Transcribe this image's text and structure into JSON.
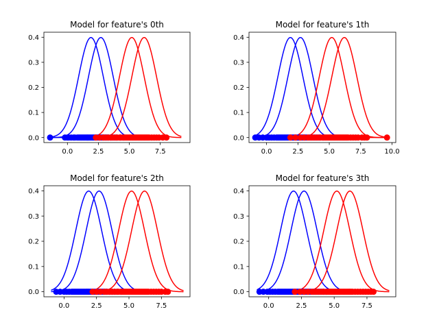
{
  "chart_data": [
    {
      "type": "line",
      "title": "Model for feature's 0th",
      "xlim": [
        -1.9,
        9.9
      ],
      "ylim": [
        -0.02,
        0.42
      ],
      "xticks": [
        0,
        2.5,
        5,
        7.5
      ],
      "xtick_labels": [
        "0.0",
        "2.5",
        "5.0",
        "7.5"
      ],
      "yticks": [
        0,
        0.1,
        0.2,
        0.3,
        0.4
      ],
      "ytick_labels": [
        "0.0",
        "0.1",
        "0.2",
        "0.3",
        "0.4"
      ],
      "curves": [
        {
          "color": "#0000ff",
          "mean": 1.9,
          "std": 1.0,
          "x_start": -1.4,
          "x_end": 5.4
        },
        {
          "color": "#0000ff",
          "mean": 2.7,
          "std": 1.0,
          "x_start": -1.4,
          "x_end": 5.4
        },
        {
          "color": "#ff0000",
          "mean": 5.2,
          "std": 1.0,
          "x_start": 1.9,
          "x_end": 9.2
        },
        {
          "color": "#ff0000",
          "mean": 6.2,
          "std": 1.0,
          "x_start": 1.9,
          "x_end": 9.2
        }
      ],
      "points": [
        {
          "color": "#0000ff",
          "values": [
            -1.4,
            -0.2,
            0.0,
            0.1,
            0.3,
            0.5,
            0.6,
            0.8,
            0.9,
            1.0,
            1.1,
            1.2,
            1.3,
            1.4,
            1.5,
            1.6,
            1.7,
            1.8,
            1.9,
            2.0,
            2.1,
            2.2,
            2.3,
            2.4,
            2.5,
            2.6,
            2.7,
            2.8,
            2.9,
            3.0,
            3.1,
            3.2,
            3.3,
            3.5,
            3.6,
            3.8,
            4.0,
            4.3,
            4.5
          ]
        },
        {
          "color": "#ff0000",
          "values": [
            2.3,
            2.6,
            2.9,
            3.1,
            3.3,
            3.5,
            3.7,
            3.9,
            4.0,
            4.2,
            4.3,
            4.5,
            4.6,
            4.7,
            4.8,
            4.9,
            5.0,
            5.1,
            5.2,
            5.3,
            5.4,
            5.5,
            5.6,
            5.7,
            5.8,
            5.9,
            6.0,
            6.1,
            6.2,
            6.3,
            6.4,
            6.5,
            6.6,
            6.8,
            7.0,
            7.2,
            7.4,
            7.7,
            8.0
          ]
        }
      ]
    },
    {
      "type": "line",
      "title": "Model for feature's 1th",
      "xlim": [
        -1.4,
        10.3
      ],
      "ylim": [
        -0.02,
        0.42
      ],
      "xticks": [
        0,
        2.5,
        5,
        7.5,
        10
      ],
      "xtick_labels": [
        "0.0",
        "2.5",
        "5.0",
        "7.5",
        "10.0"
      ],
      "yticks": [
        0,
        0.1,
        0.2,
        0.3,
        0.4
      ],
      "ytick_labels": [
        "0.0",
        "0.1",
        "0.2",
        "0.3",
        "0.4"
      ],
      "curves": [
        {
          "color": "#0000ff",
          "mean": 1.9,
          "std": 1.0,
          "x_start": -0.9,
          "x_end": 5.5
        },
        {
          "color": "#0000ff",
          "mean": 2.7,
          "std": 1.0,
          "x_start": -0.9,
          "x_end": 5.5
        },
        {
          "color": "#ff0000",
          "mean": 5.2,
          "std": 1.0,
          "x_start": 1.9,
          "x_end": 9.6
        },
        {
          "color": "#ff0000",
          "mean": 6.2,
          "std": 1.0,
          "x_start": 1.9,
          "x_end": 9.6
        }
      ],
      "points": [
        {
          "color": "#0000ff",
          "values": [
            -0.9,
            -0.6,
            -0.3,
            0.0,
            0.2,
            0.4,
            0.6,
            0.8,
            0.9,
            1.0,
            1.1,
            1.2,
            1.3,
            1.4,
            1.5,
            1.6,
            1.7,
            1.8,
            1.9,
            2.0,
            2.1,
            2.2,
            2.3,
            2.4,
            2.5,
            2.6,
            2.7,
            2.8,
            2.9,
            3.0,
            3.1,
            3.2,
            3.4,
            3.6,
            3.8,
            4.0,
            4.2,
            4.5
          ]
        },
        {
          "color": "#ff0000",
          "values": [
            1.9,
            2.3,
            2.7,
            3.0,
            3.3,
            3.5,
            3.7,
            3.9,
            4.1,
            4.3,
            4.5,
            4.6,
            4.7,
            4.8,
            4.9,
            5.0,
            5.1,
            5.2,
            5.3,
            5.4,
            5.5,
            5.6,
            5.7,
            5.8,
            5.9,
            6.0,
            6.1,
            6.2,
            6.3,
            6.4,
            6.5,
            6.7,
            6.9,
            7.1,
            7.3,
            7.6,
            7.8,
            8.0,
            9.6
          ]
        }
      ]
    },
    {
      "type": "line",
      "title": "Model for feature's 2th",
      "xlim": [
        -1.55,
        9.7
      ],
      "ylim": [
        -0.02,
        0.42
      ],
      "xticks": [
        0,
        2.5,
        5,
        7.5
      ],
      "xtick_labels": [
        "0.0",
        "2.5",
        "5.0",
        "7.5"
      ],
      "yticks": [
        0,
        0.1,
        0.2,
        0.3,
        0.4
      ],
      "ytick_labels": [
        "0.0",
        "0.1",
        "0.2",
        "0.3",
        "0.4"
      ],
      "curves": [
        {
          "color": "#0000ff",
          "mean": 1.9,
          "std": 1.0,
          "x_start": -1.0,
          "x_end": 5.4
        },
        {
          "color": "#0000ff",
          "mean": 2.7,
          "std": 1.0,
          "x_start": -1.0,
          "x_end": 5.4
        },
        {
          "color": "#ff0000",
          "mean": 5.2,
          "std": 1.0,
          "x_start": 1.9,
          "x_end": 9.2
        },
        {
          "color": "#ff0000",
          "mean": 6.2,
          "std": 1.0,
          "x_start": 1.9,
          "x_end": 9.2
        }
      ],
      "points": [
        {
          "color": "#0000ff",
          "values": [
            -0.6,
            -0.3,
            0.0,
            0.2,
            0.4,
            0.6,
            0.7,
            0.8,
            0.9,
            1.0,
            1.1,
            1.2,
            1.3,
            1.4,
            1.5,
            1.6,
            1.7,
            1.8,
            1.9,
            2.0,
            2.1,
            2.2,
            2.3,
            2.4,
            2.5,
            2.6,
            2.7,
            2.8,
            2.9,
            3.0,
            3.1,
            3.2,
            3.3,
            3.5,
            3.7,
            3.9,
            4.1,
            4.4
          ]
        },
        {
          "color": "#ff0000",
          "values": [
            2.2,
            2.5,
            2.8,
            3.1,
            3.3,
            3.5,
            3.7,
            3.9,
            4.1,
            4.2,
            4.4,
            4.5,
            4.6,
            4.7,
            4.8,
            4.9,
            5.0,
            5.1,
            5.2,
            5.3,
            5.4,
            5.5,
            5.6,
            5.7,
            5.8,
            5.9,
            6.0,
            6.1,
            6.2,
            6.3,
            6.4,
            6.5,
            6.7,
            6.9,
            7.1,
            7.3,
            7.5,
            7.8,
            8.0
          ]
        }
      ]
    },
    {
      "type": "line",
      "title": "Model for feature's 3th",
      "xlim": [
        -1.5,
        9.7
      ],
      "ylim": [
        -0.02,
        0.42
      ],
      "xticks": [
        0,
        2.5,
        5,
        7.5
      ],
      "xtick_labels": [
        "0.0",
        "2.5",
        "5.0",
        "7.5"
      ],
      "yticks": [
        0,
        0.1,
        0.2,
        0.3,
        0.4
      ],
      "ytick_labels": [
        "0.0",
        "0.1",
        "0.2",
        "0.3",
        "0.4"
      ],
      "curves": [
        {
          "color": "#0000ff",
          "mean": 1.9,
          "std": 1.0,
          "x_start": -0.9,
          "x_end": 5.4
        },
        {
          "color": "#0000ff",
          "mean": 2.7,
          "std": 1.0,
          "x_start": -0.9,
          "x_end": 5.4
        },
        {
          "color": "#ff0000",
          "mean": 5.2,
          "std": 1.0,
          "x_start": 1.9,
          "x_end": 9.2
        },
        {
          "color": "#ff0000",
          "mean": 6.2,
          "std": 1.0,
          "x_start": 1.9,
          "x_end": 9.2
        }
      ],
      "points": [
        {
          "color": "#0000ff",
          "values": [
            -0.7,
            -0.4,
            -0.1,
            0.1,
            0.3,
            0.5,
            0.7,
            0.8,
            0.9,
            1.0,
            1.1,
            1.2,
            1.3,
            1.4,
            1.5,
            1.6,
            1.7,
            1.8,
            1.9,
            2.0,
            2.1,
            2.2,
            2.3,
            2.4,
            2.5,
            2.6,
            2.7,
            2.8,
            2.9,
            3.0,
            3.1,
            3.2,
            3.4,
            3.6,
            3.8,
            4.0,
            4.2,
            4.4
          ]
        },
        {
          "color": "#ff0000",
          "values": [
            2.0,
            2.4,
            2.7,
            3.0,
            3.3,
            3.5,
            3.7,
            3.9,
            4.1,
            4.2,
            4.4,
            4.5,
            4.6,
            4.7,
            4.8,
            4.9,
            5.0,
            5.1,
            5.2,
            5.3,
            5.4,
            5.5,
            5.6,
            5.7,
            5.8,
            5.9,
            6.0,
            6.1,
            6.2,
            6.3,
            6.4,
            6.6,
            6.8,
            7.0,
            7.2,
            7.4,
            7.6,
            7.8,
            8.0
          ]
        }
      ]
    }
  ]
}
